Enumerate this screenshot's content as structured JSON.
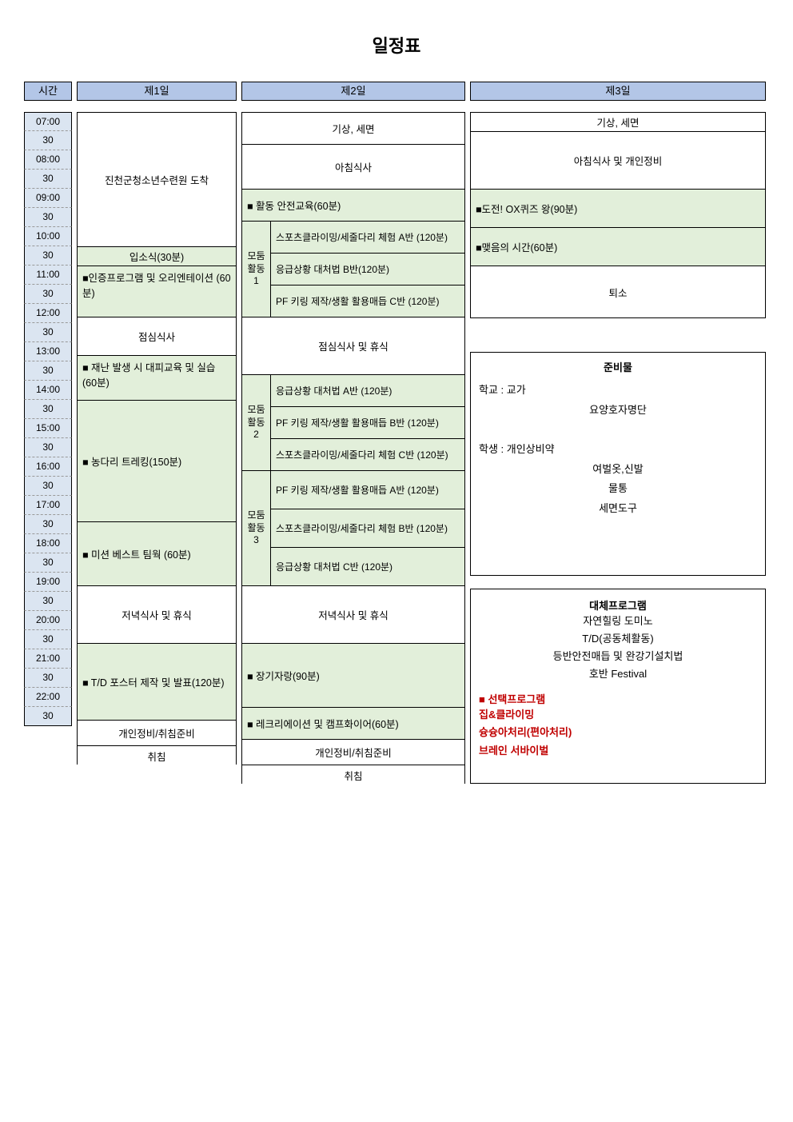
{
  "title": "일정표",
  "headers": {
    "time": "시간",
    "d1": "제1일",
    "d2": "제2일",
    "d3": "제3일"
  },
  "times": [
    "07:00",
    "30",
    "08:00",
    "30",
    "09:00",
    "30",
    "10:00",
    "30",
    "11:00",
    "30",
    "12:00",
    "30",
    "13:00",
    "30",
    "14:00",
    "30",
    "15:00",
    "30",
    "16:00",
    "30",
    "17:00",
    "30",
    "18:00",
    "30",
    "19:00",
    "30",
    "20:00",
    "30",
    "21:00",
    "30",
    "22:00",
    "30"
  ],
  "d1": {
    "arrival": "진천군청소년수련원 도착",
    "ceremony": "입소식(30분)",
    "orientation": "■인증프로그램 및 오리엔테이션 (60분)",
    "lunch": "점심식사",
    "disaster": "■ 재난 발생 시 대피교육 및 실습 (60분)",
    "trekking": "■ 농다리 트레킹(150분)",
    "teamwork": "■ 미션 베스트 팀웍 (60분)",
    "dinner": "저녁식사 및 휴식",
    "poster": "■ T/D  포스터 제작 및 발표(120분)",
    "prep": "개인정비/취침준비",
    "sleep": "취침"
  },
  "d2": {
    "wake": "기상, 세면",
    "breakfast": "아침식사",
    "safety": "■ 활동 안전교육(60분)",
    "g1_label": "모둠\n활동\n1",
    "g1": [
      "스포츠클라이밍/세줄다리 체험 A반 (120분)",
      "응급상황 대처법 B반(120분)",
      "PF 키링 제작/생활 활용매듭 C반 (120분)"
    ],
    "lunch": "점심식사 및 휴식",
    "g2_label": "모둠\n활동\n2",
    "g2": [
      "응급상황 대처법 A반 (120분)",
      "PF 키링 제작/생활 활용매듭 B반 (120분)",
      "스포츠클라이밍/세줄다리 체험 C반 (120분)"
    ],
    "g3_label": "모둠\n활동\n3",
    "g3": [
      "PF 키링 제작/생활 활용매듭 A반 (120분)",
      "스포츠클라이밍/세줄다리 체험 B반 (120분)",
      "응급상황 대처법 C반 (120분)"
    ],
    "dinner": "저녁식사 및 휴식",
    "talent": "■ 장기자랑(90분)",
    "campfire": "■ 레크리에이션  및 캠프화이어(60분)",
    "prep": "개인정비/취침준비",
    "sleep": "취침"
  },
  "d3": {
    "wake": "기상, 세면",
    "breakfast": "아침식사 및 개인정비",
    "quiz": "■도전! OX퀴즈 왕(90분)",
    "closing": "■맺음의 시간(60분)",
    "leave": "퇴소",
    "prep_title": "준비물",
    "prep_lines": [
      "학교 : 교가",
      "요양호자명단",
      "",
      "학생 : 개인상비약",
      "여벌옷,신발",
      "물통",
      "세면도구"
    ],
    "alt_title": "대체프로그램",
    "alt_lines": [
      "자연힐링 도미노",
      "T/D(공동체활동)",
      "등반안전매듭 및 완강기설치법",
      "호반 Festival"
    ],
    "sel_title": "■ 선택프로그램",
    "sel_lines": [
      "집&클라이밍",
      "슝슝아처리(편아처리)",
      "브레인 서바이벌"
    ]
  }
}
